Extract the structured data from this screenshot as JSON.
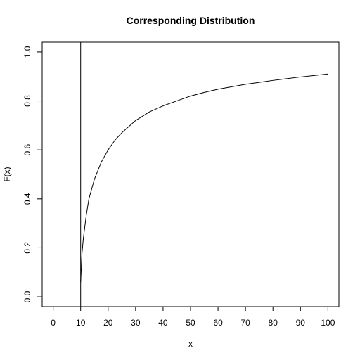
{
  "chart_data": {
    "type": "line",
    "title": "Corresponding Distribution",
    "xlabel": "x",
    "ylabel": "F(x)",
    "xlim": [
      -4,
      104
    ],
    "ylim": [
      -0.04,
      1.04
    ],
    "x_ticks": [
      0,
      10,
      20,
      30,
      40,
      50,
      60,
      70,
      80,
      90,
      100
    ],
    "y_ticks": [
      0.0,
      0.2,
      0.4,
      0.6,
      0.8,
      1.0
    ],
    "y_tick_labels": [
      "0.0",
      "0.2",
      "0.4",
      "0.6",
      "0.8",
      "1.0"
    ],
    "grid": false,
    "vertical_line_x": 10,
    "series": [
      {
        "x": [
          10,
          10.5,
          11,
          12,
          13,
          15,
          17.5,
          20,
          22.5,
          25,
          30,
          35,
          40,
          45,
          50,
          55,
          60,
          65,
          70,
          75,
          80,
          85,
          90,
          95,
          100
        ],
        "y": [
          0.06,
          0.18,
          0.24,
          0.33,
          0.4,
          0.48,
          0.55,
          0.6,
          0.64,
          0.67,
          0.72,
          0.755,
          0.78,
          0.8,
          0.82,
          0.835,
          0.848,
          0.858,
          0.868,
          0.876,
          0.884,
          0.891,
          0.898,
          0.904,
          0.91
        ]
      }
    ]
  }
}
